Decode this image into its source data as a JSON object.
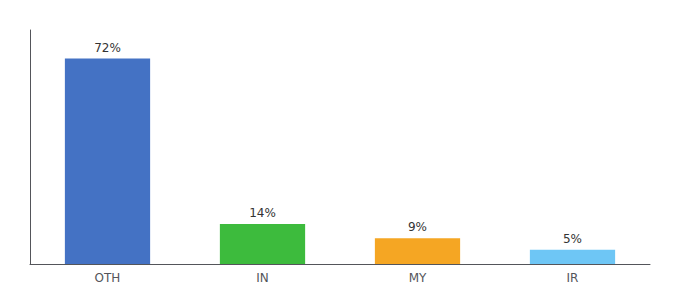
{
  "chart_data": {
    "type": "bar",
    "categories": [
      "OTH",
      "IN",
      "MY",
      "IR"
    ],
    "values": [
      72,
      14,
      9,
      5
    ],
    "colors": [
      "#4472c4",
      "#3dbb3d",
      "#f5a623",
      "#6ec6f5"
    ],
    "value_labels": [
      "72%",
      "14%",
      "9%",
      "5%"
    ],
    "data_labels": true,
    "ylim": [
      0,
      82
    ],
    "tick_labels": "x",
    "grid": false
  }
}
